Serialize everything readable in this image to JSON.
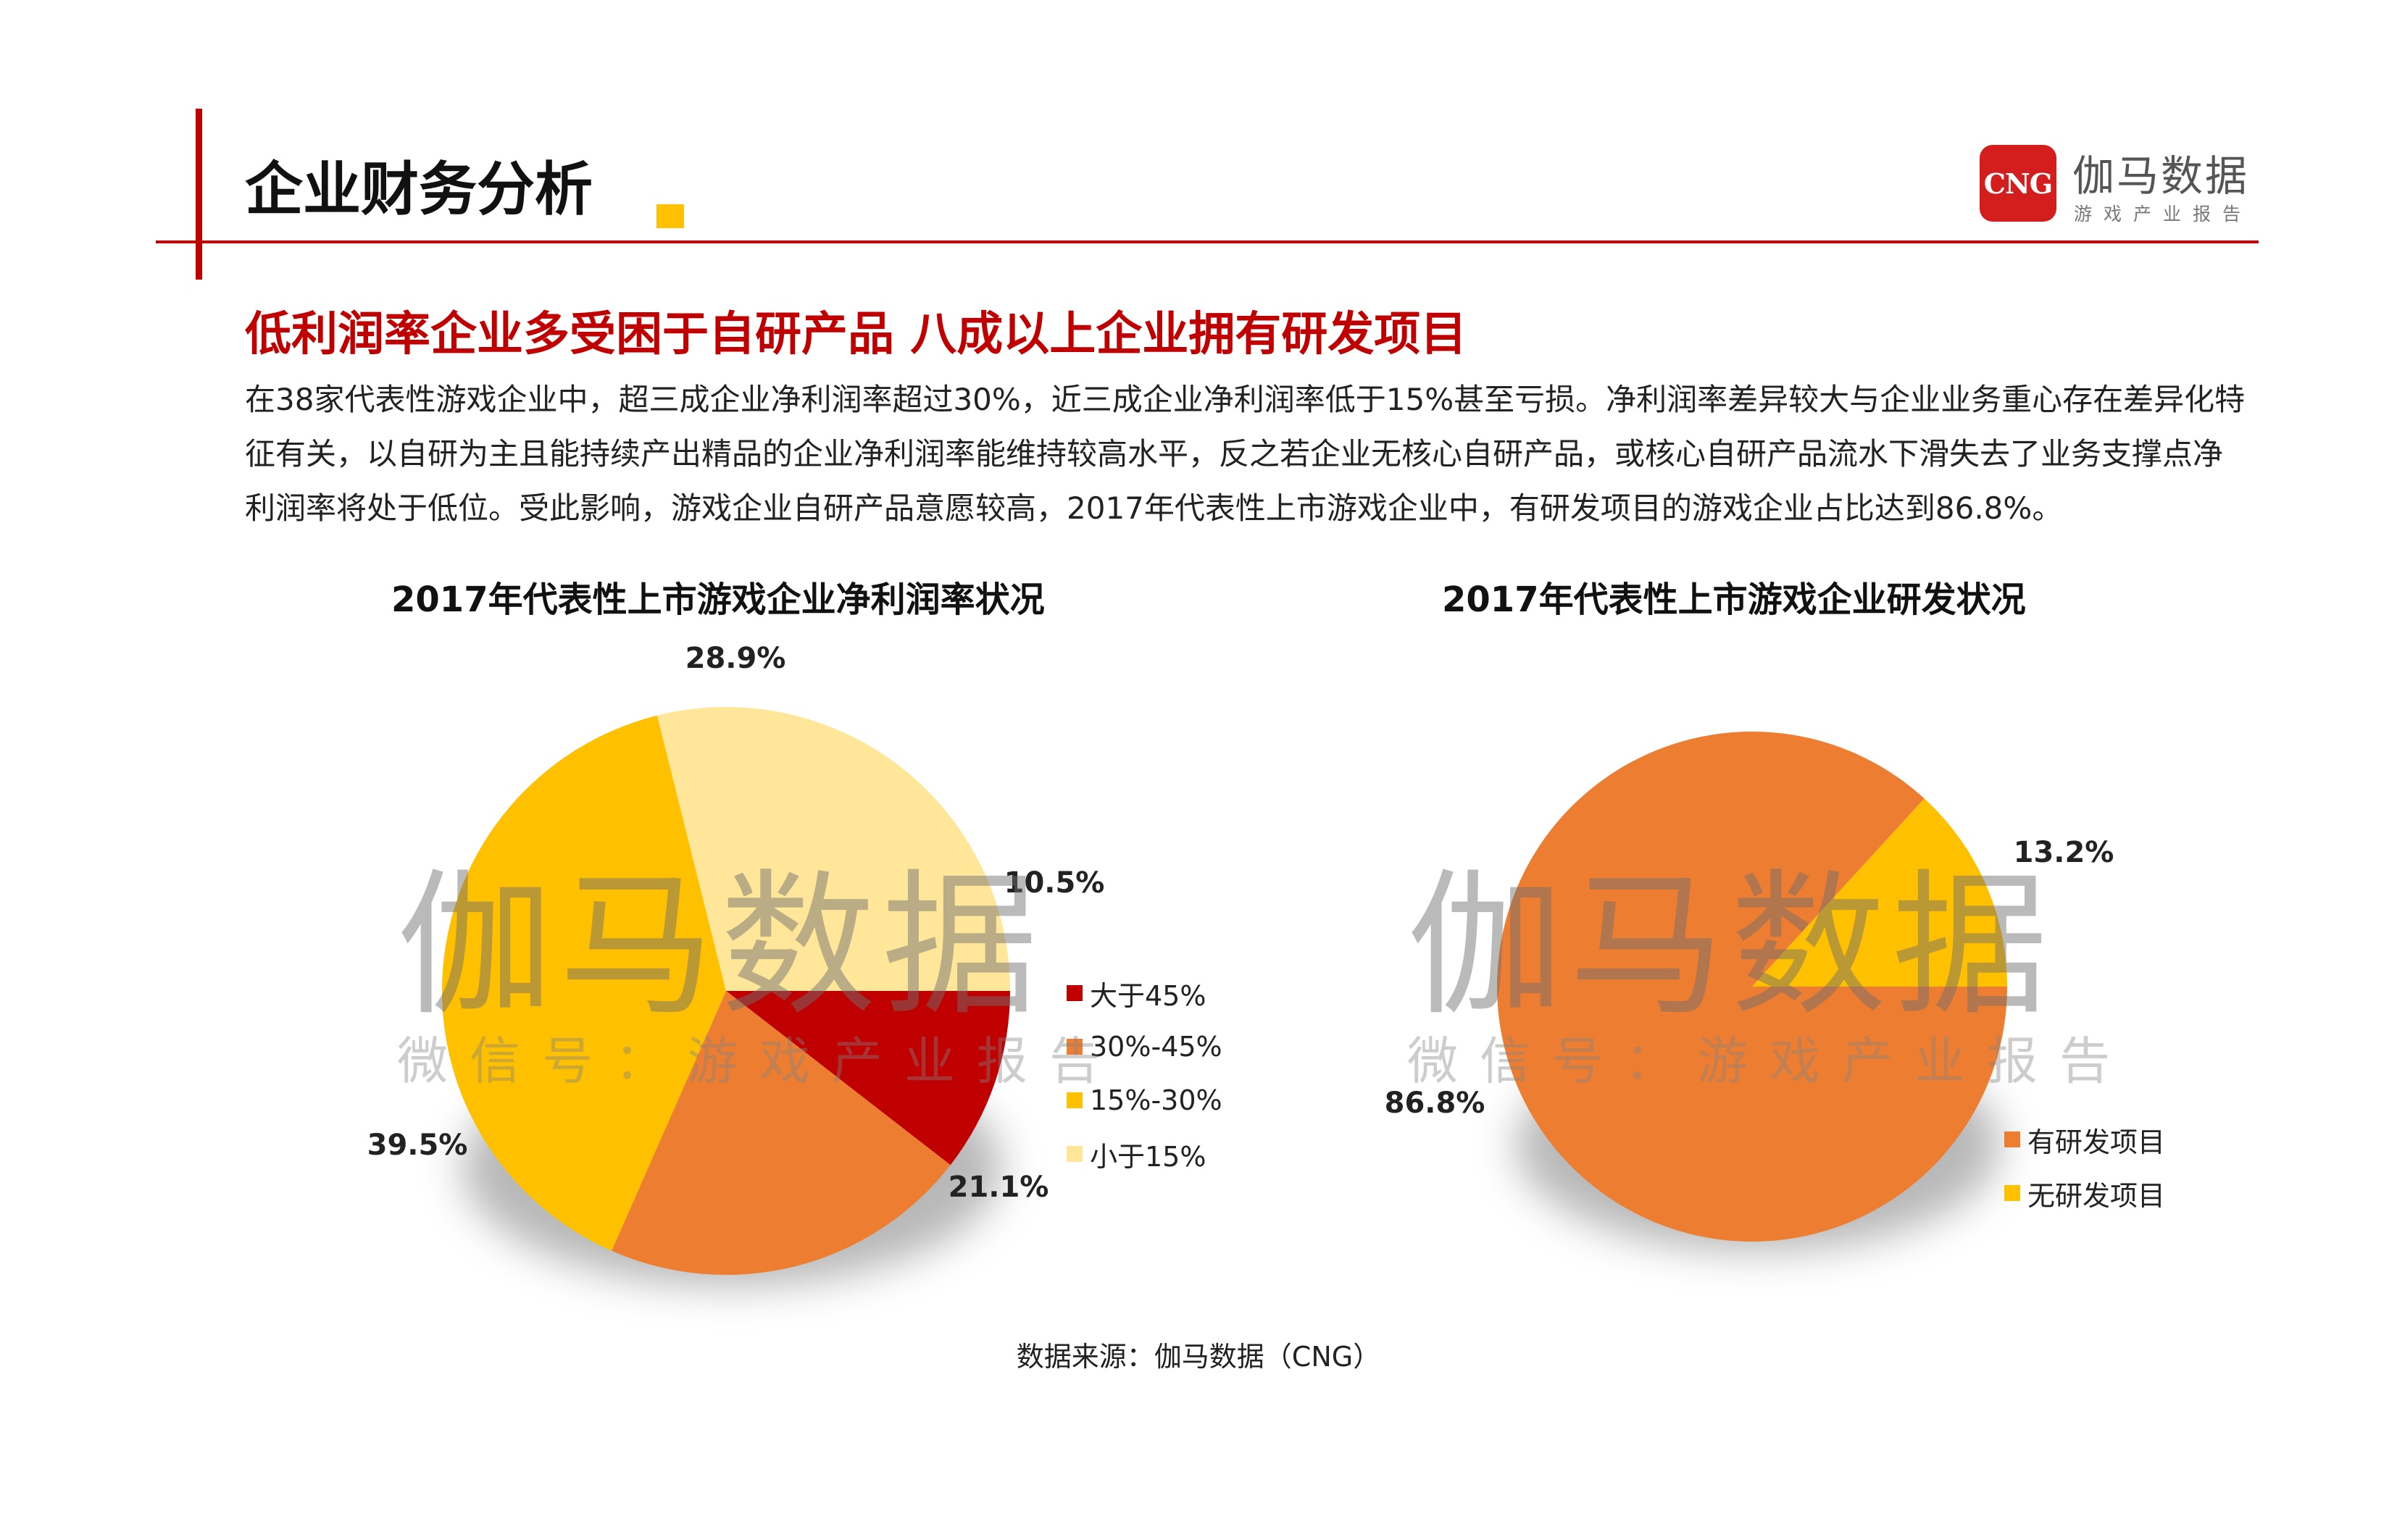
{
  "header": {
    "title": "企业财务分析",
    "logo_mark": "CNG",
    "logo_name": "伽马数据",
    "logo_sub": "游戏产业报告"
  },
  "headline": "低利润率企业多受困于自研产品  八成以上企业拥有研发项目",
  "body": "在38家代表性游戏企业中，超三成企业净利润率超过30%，近三成企业净利润率低于15%甚至亏损。净利润率差异较大与企业业务重心存在差异化特征有关，以自研为主且能持续产出精品的企业净利润率能维持较高水平，反之若企业无核心自研产品，或核心自研产品流水下滑失去了业务支撑点净利润率将处于低位。受此影响，游戏企业自研产品意愿较高，2017年代表性上市游戏企业中，有研发项目的游戏企业占比达到86.8%。",
  "watermark": {
    "big": "伽马数据",
    "small": "微信号：游戏产业报告"
  },
  "source": "数据来源：伽马数据（CNG）",
  "colors": {
    "accent_red": "#c00000",
    "accent_yellow": "#ffc000"
  },
  "chart_data": [
    {
      "type": "pie",
      "title": "2017年代表性上市游戏企业净利润率状况",
      "legend_position": "right",
      "slices": [
        {
          "label": "大于45%",
          "value": 10.5,
          "display": "10.5%",
          "color": "#c00000"
        },
        {
          "label": "30%-45%",
          "value": 21.1,
          "display": "21.1%",
          "color": "#ed7d31"
        },
        {
          "label": "15%-30%",
          "value": 39.5,
          "display": "39.5%",
          "color": "#ffc000"
        },
        {
          "label": "小于15%",
          "value": 28.9,
          "display": "28.9%",
          "color": "#ffe699"
        }
      ]
    },
    {
      "type": "pie",
      "title": "2017年代表性上市游戏企业研发状况",
      "legend_position": "bottom-right",
      "slices": [
        {
          "label": "有研发项目",
          "value": 86.8,
          "display": "86.8%",
          "color": "#ed7d31"
        },
        {
          "label": "无研发项目",
          "value": 13.2,
          "display": "13.2%",
          "color": "#ffc000"
        }
      ]
    }
  ]
}
